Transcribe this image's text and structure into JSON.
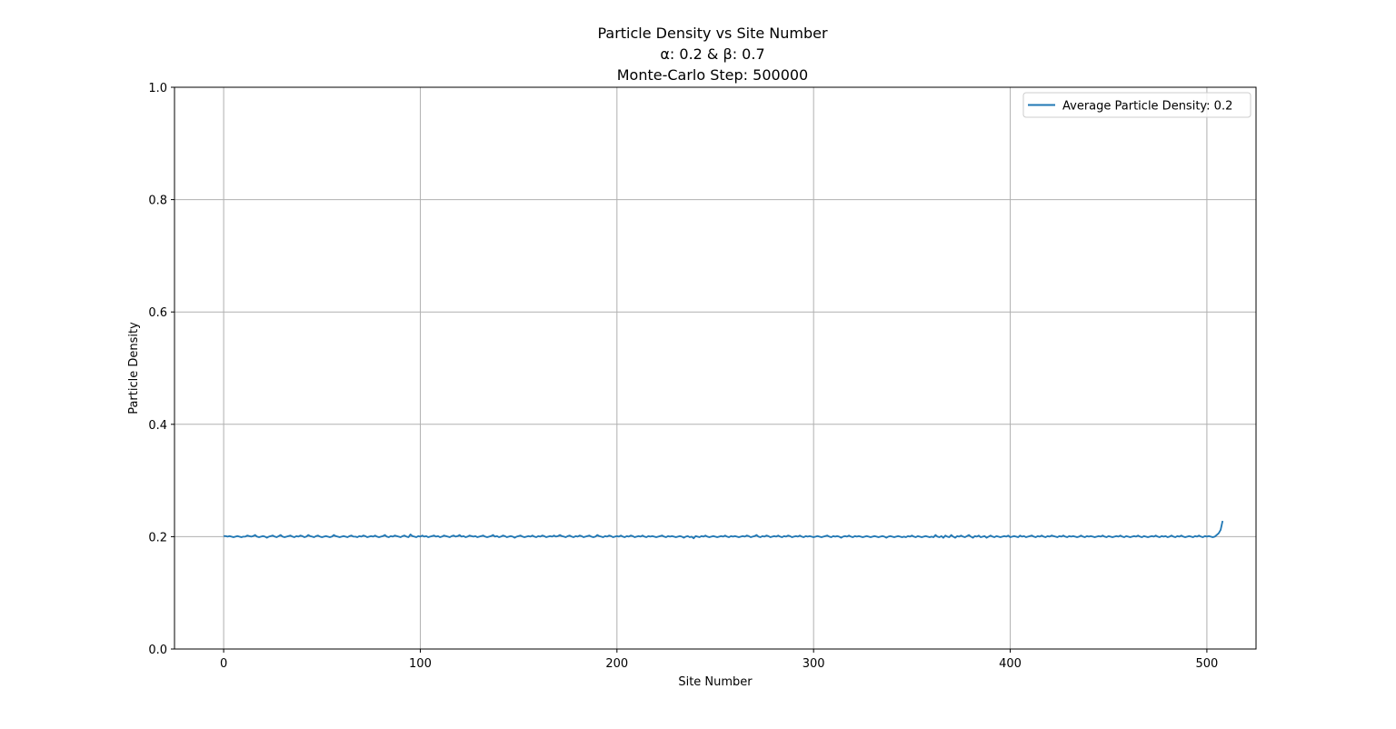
{
  "chart_data": {
    "type": "line",
    "title_lines": [
      "Particle Density vs Site Number",
      "α: 0.2 & β: 0.7",
      "Monte-Carlo Step: 500000"
    ],
    "xlabel": "Site Number",
    "ylabel": "Particle Density",
    "xlim": [
      -25,
      525
    ],
    "ylim": [
      0.0,
      1.0
    ],
    "x_ticks": [
      0,
      100,
      200,
      300,
      400,
      500
    ],
    "y_ticks": [
      0.0,
      0.2,
      0.4,
      0.6,
      0.8,
      1.0
    ],
    "x_tick_labels": [
      "0",
      "100",
      "200",
      "300",
      "400",
      "500"
    ],
    "y_tick_labels": [
      "0.0",
      "0.2",
      "0.4",
      "0.6",
      "0.8",
      "1.0"
    ],
    "grid": true,
    "legend_position": "top-right",
    "color": "#1f77b4",
    "series": [
      {
        "name": "Average Particle Density: 0.2",
        "x_start": 0,
        "x_step": 1,
        "values": [
          0.201,
          0.201,
          0.2,
          0.201,
          0.2,
          0.199,
          0.2,
          0.201,
          0.2,
          0.199,
          0.2,
          0.2,
          0.202,
          0.201,
          0.2,
          0.201,
          0.203,
          0.2,
          0.199,
          0.2,
          0.201,
          0.2,
          0.198,
          0.2,
          0.201,
          0.202,
          0.2,
          0.199,
          0.201,
          0.203,
          0.2,
          0.199,
          0.2,
          0.201,
          0.202,
          0.2,
          0.199,
          0.201,
          0.2,
          0.202,
          0.201,
          0.199,
          0.2,
          0.203,
          0.201,
          0.2,
          0.199,
          0.201,
          0.202,
          0.2,
          0.199,
          0.2,
          0.201,
          0.2,
          0.199,
          0.2,
          0.203,
          0.201,
          0.2,
          0.199,
          0.2,
          0.201,
          0.2,
          0.199,
          0.201,
          0.202,
          0.2,
          0.2,
          0.199,
          0.201,
          0.2,
          0.202,
          0.201,
          0.199,
          0.2,
          0.201,
          0.2,
          0.202,
          0.2,
          0.199,
          0.2,
          0.201,
          0.203,
          0.2,
          0.199,
          0.201,
          0.2,
          0.202,
          0.201,
          0.2,
          0.199,
          0.201,
          0.202,
          0.2,
          0.199,
          0.204,
          0.201,
          0.2,
          0.199,
          0.201,
          0.2,
          0.202,
          0.2,
          0.201,
          0.199,
          0.2,
          0.201,
          0.202,
          0.2,
          0.201,
          0.199,
          0.2,
          0.202,
          0.201,
          0.2,
          0.199,
          0.201,
          0.202,
          0.2,
          0.201,
          0.203,
          0.2,
          0.201,
          0.199,
          0.2,
          0.202,
          0.201,
          0.2,
          0.201,
          0.199,
          0.2,
          0.201,
          0.202,
          0.2,
          0.199,
          0.2,
          0.201,
          0.203,
          0.2,
          0.201,
          0.199,
          0.2,
          0.202,
          0.201,
          0.199,
          0.2,
          0.201,
          0.2,
          0.198,
          0.2,
          0.201,
          0.202,
          0.2,
          0.199,
          0.2,
          0.201,
          0.2,
          0.202,
          0.2,
          0.199,
          0.201,
          0.2,
          0.202,
          0.201,
          0.199,
          0.2,
          0.201,
          0.2,
          0.202,
          0.2,
          0.201,
          0.203,
          0.201,
          0.2,
          0.199,
          0.201,
          0.202,
          0.2,
          0.199,
          0.201,
          0.2,
          0.202,
          0.201,
          0.199,
          0.2,
          0.201,
          0.202,
          0.2,
          0.199,
          0.2,
          0.203,
          0.201,
          0.2,
          0.199,
          0.201,
          0.2,
          0.202,
          0.201,
          0.199,
          0.2,
          0.201,
          0.2,
          0.202,
          0.2,
          0.199,
          0.201,
          0.2,
          0.202,
          0.201,
          0.199,
          0.2,
          0.201,
          0.2,
          0.202,
          0.2,
          0.199,
          0.201,
          0.2,
          0.201,
          0.2,
          0.199,
          0.2,
          0.201,
          0.202,
          0.2,
          0.199,
          0.201,
          0.2,
          0.201,
          0.2,
          0.199,
          0.2,
          0.201,
          0.2,
          0.198,
          0.2,
          0.201,
          0.199,
          0.2,
          0.197,
          0.201,
          0.2,
          0.199,
          0.201,
          0.2,
          0.202,
          0.2,
          0.199,
          0.2,
          0.201,
          0.2,
          0.199,
          0.2,
          0.201,
          0.2,
          0.202,
          0.2,
          0.199,
          0.201,
          0.2,
          0.201,
          0.2,
          0.199,
          0.2,
          0.201,
          0.2,
          0.202,
          0.201,
          0.199,
          0.2,
          0.201,
          0.203,
          0.2,
          0.199,
          0.201,
          0.2,
          0.202,
          0.201,
          0.199,
          0.2,
          0.201,
          0.2,
          0.202,
          0.2,
          0.199,
          0.201,
          0.2,
          0.202,
          0.201,
          0.199,
          0.2,
          0.201,
          0.2,
          0.202,
          0.2,
          0.199,
          0.201,
          0.2,
          0.201,
          0.2,
          0.199,
          0.2,
          0.201,
          0.2,
          0.199,
          0.2,
          0.201,
          0.202,
          0.2,
          0.199,
          0.201,
          0.2,
          0.201,
          0.2,
          0.198,
          0.2,
          0.201,
          0.2,
          0.202,
          0.2,
          0.199,
          0.201,
          0.2,
          0.201,
          0.2,
          0.199,
          0.2,
          0.201,
          0.2,
          0.199,
          0.2,
          0.201,
          0.2,
          0.199,
          0.2,
          0.201,
          0.2,
          0.198,
          0.2,
          0.201,
          0.2,
          0.199,
          0.2,
          0.201,
          0.2,
          0.199,
          0.2,
          0.199,
          0.201,
          0.2,
          0.202,
          0.2,
          0.199,
          0.201,
          0.2,
          0.199,
          0.2,
          0.201,
          0.2,
          0.199,
          0.2,
          0.199,
          0.203,
          0.2,
          0.199,
          0.201,
          0.198,
          0.202,
          0.2,
          0.199,
          0.203,
          0.2,
          0.198,
          0.201,
          0.2,
          0.202,
          0.2,
          0.199,
          0.201,
          0.203,
          0.2,
          0.198,
          0.201,
          0.2,
          0.202,
          0.199,
          0.2,
          0.201,
          0.198,
          0.2,
          0.202,
          0.2,
          0.199,
          0.201,
          0.2,
          0.199,
          0.2,
          0.201,
          0.2,
          0.202,
          0.199,
          0.2,
          0.201,
          0.2,
          0.199,
          0.202,
          0.2,
          0.201,
          0.199,
          0.2,
          0.201,
          0.202,
          0.2,
          0.199,
          0.201,
          0.2,
          0.202,
          0.2,
          0.199,
          0.201,
          0.2,
          0.202,
          0.201,
          0.2,
          0.199,
          0.201,
          0.2,
          0.202,
          0.2,
          0.199,
          0.201,
          0.2,
          0.201,
          0.2,
          0.199,
          0.2,
          0.202,
          0.2,
          0.199,
          0.201,
          0.2,
          0.201,
          0.2,
          0.199,
          0.2,
          0.201,
          0.2,
          0.202,
          0.2,
          0.199,
          0.201,
          0.2,
          0.199,
          0.2,
          0.201,
          0.2,
          0.202,
          0.2,
          0.199,
          0.201,
          0.2,
          0.199,
          0.2,
          0.201,
          0.2,
          0.202,
          0.2,
          0.199,
          0.201,
          0.2,
          0.199,
          0.2,
          0.201,
          0.2,
          0.202,
          0.2,
          0.199,
          0.201,
          0.2,
          0.201,
          0.199,
          0.2,
          0.202,
          0.2,
          0.199,
          0.201,
          0.2,
          0.202,
          0.2,
          0.199,
          0.2,
          0.201,
          0.2,
          0.199,
          0.201,
          0.2,
          0.202,
          0.2,
          0.199,
          0.201,
          0.2,
          0.201,
          0.2,
          0.199,
          0.2,
          0.203,
          0.206,
          0.212,
          0.228
        ]
      }
    ]
  }
}
